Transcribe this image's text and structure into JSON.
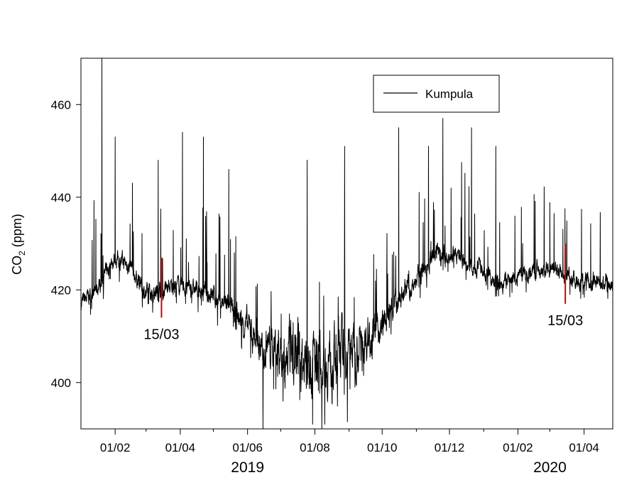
{
  "chart_data": {
    "type": "line",
    "title": "",
    "xlabel": "",
    "ylabel": "CO",
    "ylabel_subscript": "2",
    "ylabel_unit": " (ppm)",
    "ylim": [
      390,
      470
    ],
    "xlim": [
      "2019-01-01",
      "2020-04-27"
    ],
    "y_ticks": [
      400,
      420,
      440,
      460
    ],
    "x_ticks": [
      {
        "date": "2019-02-01",
        "label": "01/02"
      },
      {
        "date": "2019-04-01",
        "label": "01/04"
      },
      {
        "date": "2019-06-01",
        "label": "01/06"
      },
      {
        "date": "2019-08-01",
        "label": "01/08"
      },
      {
        "date": "2019-10-01",
        "label": "01/10"
      },
      {
        "date": "2019-12-01",
        "label": "01/12"
      },
      {
        "date": "2020-02-01",
        "label": "01/02"
      },
      {
        "date": "2020-04-01",
        "label": "01/04"
      }
    ],
    "minor_x_ticks": [
      "2019-03-01",
      "2019-05-01",
      "2019-07-01",
      "2019-09-01",
      "2019-11-01",
      "2020-01-01",
      "2020-03-01"
    ],
    "year_labels": [
      {
        "date": "2019-06-01",
        "label": "2019"
      },
      {
        "date": "2020-03-01",
        "label": "2020"
      }
    ],
    "legend": {
      "position": "top-right",
      "entries": [
        "Kumpula"
      ]
    },
    "grid": false,
    "series": [
      {
        "name": "Kumpula",
        "color": "#000000",
        "baseline": [
          {
            "date": "2019-01-01",
            "value": 417
          },
          {
            "date": "2019-01-15",
            "value": 420
          },
          {
            "date": "2019-02-01",
            "value": 427
          },
          {
            "date": "2019-02-15",
            "value": 425
          },
          {
            "date": "2019-03-01",
            "value": 419
          },
          {
            "date": "2019-03-15",
            "value": 420
          },
          {
            "date": "2019-04-01",
            "value": 421
          },
          {
            "date": "2019-04-15",
            "value": 420
          },
          {
            "date": "2019-05-01",
            "value": 419
          },
          {
            "date": "2019-05-15",
            "value": 416
          },
          {
            "date": "2019-06-01",
            "value": 412
          },
          {
            "date": "2019-06-15",
            "value": 408
          },
          {
            "date": "2019-07-01",
            "value": 407
          },
          {
            "date": "2019-07-15",
            "value": 405
          },
          {
            "date": "2019-08-01",
            "value": 404
          },
          {
            "date": "2019-08-15",
            "value": 405
          },
          {
            "date": "2019-09-01",
            "value": 407
          },
          {
            "date": "2019-09-15",
            "value": 409
          },
          {
            "date": "2019-10-01",
            "value": 412
          },
          {
            "date": "2019-10-15",
            "value": 418
          },
          {
            "date": "2019-11-01",
            "value": 422
          },
          {
            "date": "2019-11-15",
            "value": 427
          },
          {
            "date": "2019-12-01",
            "value": 428
          },
          {
            "date": "2019-12-15",
            "value": 426
          },
          {
            "date": "2020-01-01",
            "value": 424
          },
          {
            "date": "2020-01-15",
            "value": 421
          },
          {
            "date": "2020-02-01",
            "value": 423
          },
          {
            "date": "2020-02-15",
            "value": 424
          },
          {
            "date": "2020-03-01",
            "value": 424
          },
          {
            "date": "2020-03-15",
            "value": 423
          },
          {
            "date": "2020-04-01",
            "value": 422
          },
          {
            "date": "2020-04-27",
            "value": 421
          }
        ],
        "peaks": [
          {
            "date": "2019-01-20",
            "value": 470
          },
          {
            "date": "2019-02-01",
            "value": 453
          },
          {
            "date": "2019-03-12",
            "value": 448
          },
          {
            "date": "2019-04-03",
            "value": 454
          },
          {
            "date": "2019-04-22",
            "value": 453
          },
          {
            "date": "2019-05-15",
            "value": 446
          },
          {
            "date": "2019-07-25",
            "value": 448
          },
          {
            "date": "2019-08-28",
            "value": 451
          },
          {
            "date": "2019-10-16",
            "value": 455
          },
          {
            "date": "2019-11-12",
            "value": 451
          },
          {
            "date": "2019-11-25",
            "value": 457
          },
          {
            "date": "2019-12-21",
            "value": 455
          },
          {
            "date": "2020-01-12",
            "value": 451
          }
        ],
        "troughs": [
          {
            "date": "2019-06-15",
            "value": 390
          },
          {
            "date": "2019-07-30",
            "value": 391
          },
          {
            "date": "2019-08-10",
            "value": 391
          }
        ]
      }
    ],
    "annotations": [
      {
        "date": "2019-03-15",
        "y_low": 414,
        "y_high": 427,
        "label": "15/03",
        "color": "#d40000"
      },
      {
        "date": "2020-03-15",
        "y_low": 417,
        "y_high": 430,
        "label": "15/03",
        "color": "#d40000"
      }
    ]
  }
}
